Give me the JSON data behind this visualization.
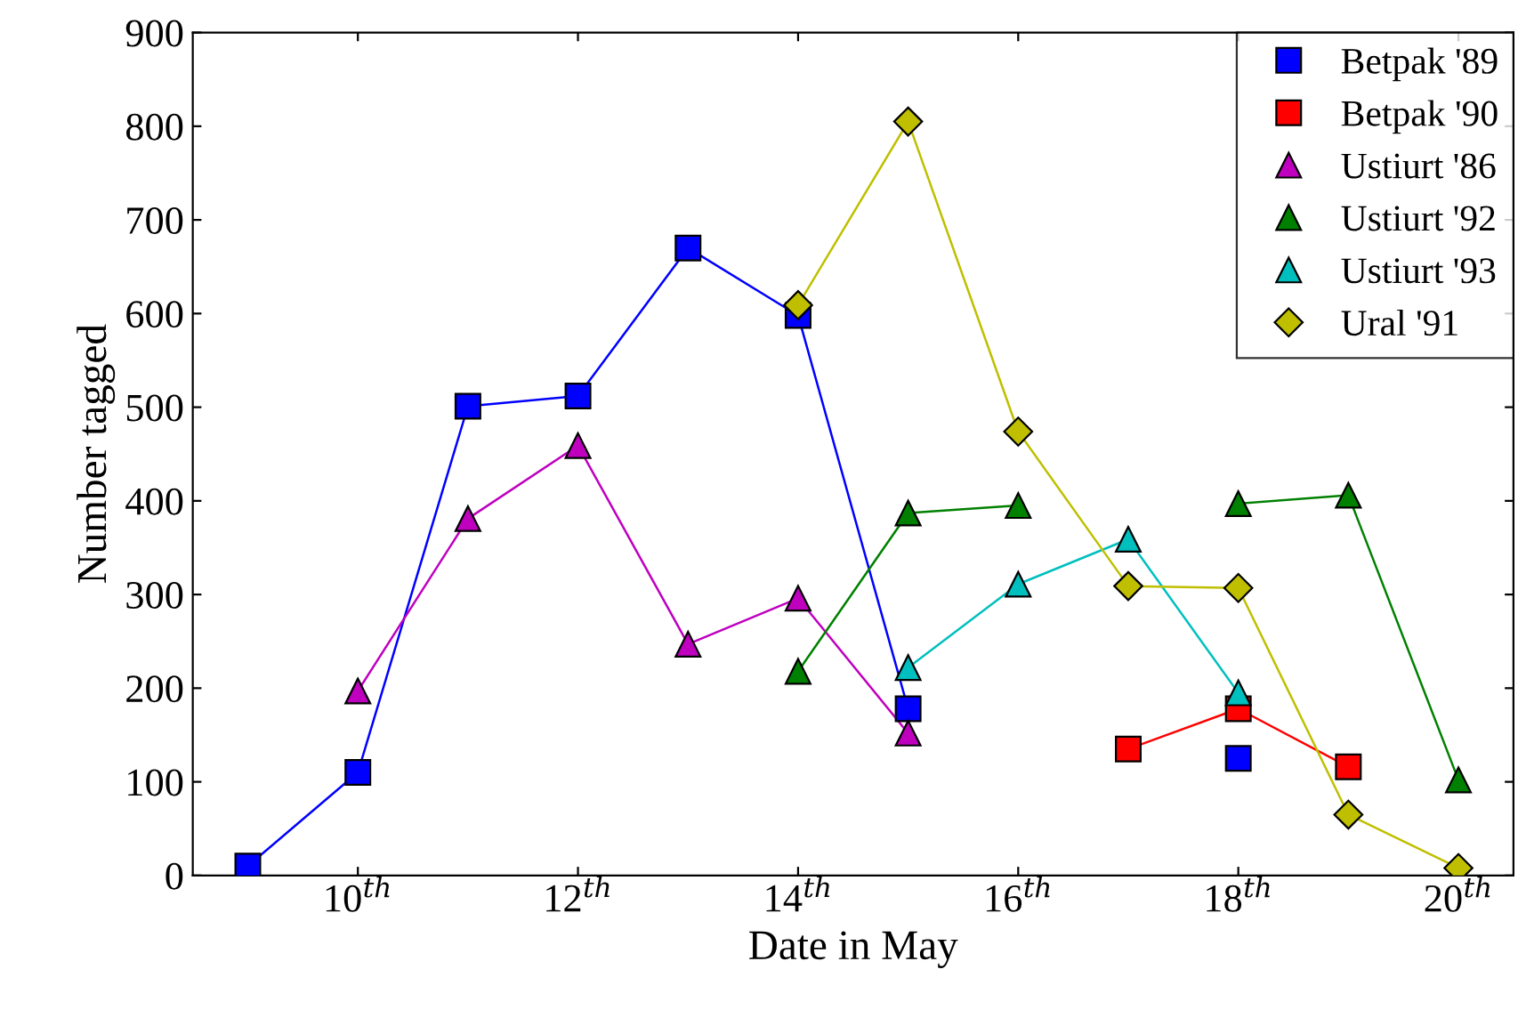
{
  "chart_data": {
    "type": "line",
    "xlabel": "Date in May",
    "ylabel": "Number tagged",
    "xlim": [
      8.5,
      20.5
    ],
    "ylim": [
      0,
      900
    ],
    "xticks": [
      {
        "value": 10,
        "label": "10$^{th}$"
      },
      {
        "value": 12,
        "label": "12$^{th}$"
      },
      {
        "value": 14,
        "label": "14$^{th}$"
      },
      {
        "value": 16,
        "label": "16$^{th}$"
      },
      {
        "value": 18,
        "label": "18$^{th}$"
      },
      {
        "value": 20,
        "label": "20$^{th}$"
      }
    ],
    "yticks": [
      0,
      100,
      200,
      300,
      400,
      500,
      600,
      700,
      800,
      900
    ],
    "grid": false,
    "legend": "top right",
    "series": [
      {
        "name": "Betpak '89",
        "color": "#0000ff",
        "marker": "square",
        "x": [
          9,
          10,
          11,
          12,
          13,
          14,
          15,
          16,
          17,
          18
        ],
        "values": [
          10,
          110,
          501,
          512,
          670,
          598,
          178,
          null,
          null,
          125
        ]
      },
      {
        "name": "Betpak '90",
        "color": "#ff0000",
        "marker": "square",
        "x": [
          17,
          18,
          19
        ],
        "values": [
          135,
          178,
          116
        ]
      },
      {
        "name": "Ustiurt '86",
        "color": "#bf00bf",
        "marker": "triangle",
        "x": [
          10,
          11,
          12,
          13,
          14,
          15
        ],
        "values": [
          197,
          381,
          459,
          247,
          296,
          152
        ]
      },
      {
        "name": "Ustiurt '92",
        "color": "#008000",
        "marker": "triangle",
        "x": [
          14,
          15,
          16,
          17,
          18,
          19,
          20
        ],
        "values": [
          218,
          387,
          395,
          null,
          397,
          406,
          102
        ]
      },
      {
        "name": "Ustiurt '93",
        "color": "#00bfbf",
        "marker": "triangle",
        "x": [
          15,
          16,
          17,
          18
        ],
        "values": [
          222,
          311,
          359,
          195
        ]
      },
      {
        "name": "Ural '91",
        "color": "#bfbf00",
        "marker": "diamond",
        "x": [
          14,
          15,
          16,
          17,
          18,
          19,
          20
        ],
        "values": [
          609,
          805,
          474,
          309,
          307,
          65,
          8
        ]
      }
    ]
  }
}
